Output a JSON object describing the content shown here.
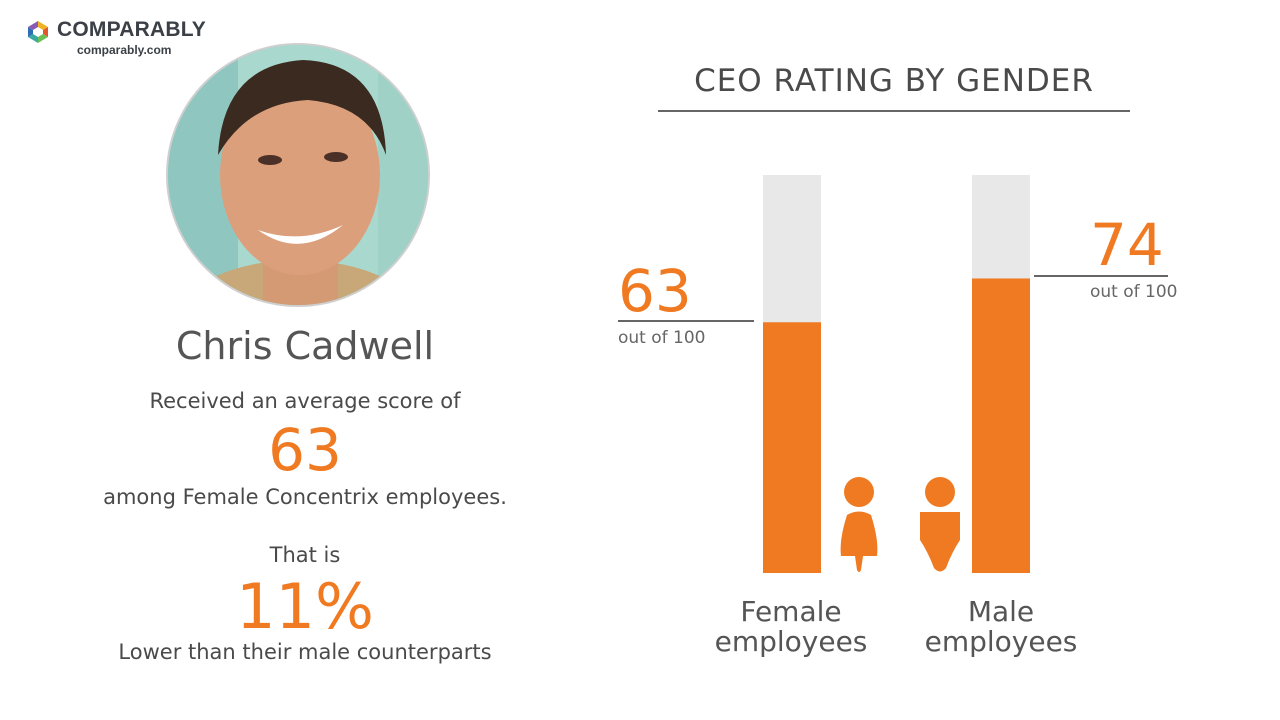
{
  "logo": {
    "name": "COMPARABLY",
    "url": "comparably.com"
  },
  "person": {
    "name": "Chris Cadwell",
    "line1": "Received an average score of",
    "score": "63",
    "line2": "among Female Concentrix employees.",
    "line3": "That is",
    "percent": "11%",
    "line4": "Lower than their male counterparts"
  },
  "colors": {
    "accent": "#f07a22",
    "track": "#e8e8e8",
    "text": "#4a4a4a"
  },
  "chart_data": {
    "type": "bar",
    "title": "CEO RATING BY GENDER",
    "categories": [
      "Female employees",
      "Male employees"
    ],
    "label_lines": [
      [
        "Female",
        "employees"
      ],
      [
        "Male",
        "employees"
      ]
    ],
    "values": [
      63,
      74
    ],
    "value_labels": [
      "63",
      "74"
    ],
    "sublabel": "out of 100",
    "ylim": [
      0,
      100
    ],
    "icons": [
      "female-person-icon",
      "male-person-icon"
    ]
  }
}
